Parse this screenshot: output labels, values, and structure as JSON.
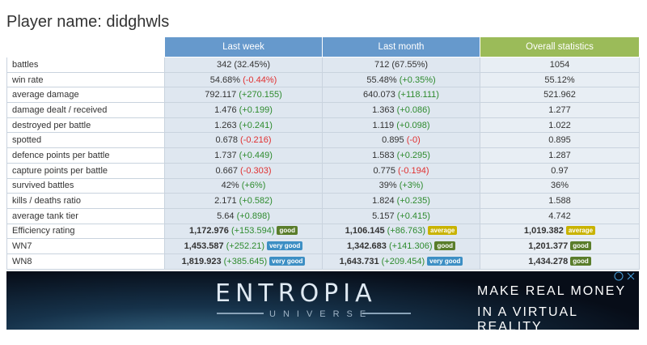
{
  "header": {
    "title": "Player name: didghwls"
  },
  "table": {
    "columns": [
      "Last week",
      "Last month",
      "Overall statistics"
    ],
    "column_colors": [
      "#6699cc",
      "#6699cc",
      "#9bbb59"
    ],
    "rows": [
      {
        "label": "battles",
        "cells": [
          {
            "value": "342 (32.45%)"
          },
          {
            "value": "712 (67.55%)"
          },
          {
            "value": "1054"
          }
        ]
      },
      {
        "label": "win rate",
        "cells": [
          {
            "value": "54.68%",
            "delta": "(-0.44%)"
          },
          {
            "value": "55.48%",
            "delta": "(+0.35%)"
          },
          {
            "value": "55.12%"
          }
        ]
      },
      {
        "label": "average damage",
        "cells": [
          {
            "value": "792.117",
            "delta": "(+270.155)"
          },
          {
            "value": "640.073",
            "delta": "(+118.111)"
          },
          {
            "value": "521.962"
          }
        ]
      },
      {
        "label": "damage dealt / received",
        "cells": [
          {
            "value": "1.476",
            "delta": "(+0.199)"
          },
          {
            "value": "1.363",
            "delta": "(+0.086)"
          },
          {
            "value": "1.277"
          }
        ]
      },
      {
        "label": "destroyed per battle",
        "cells": [
          {
            "value": "1.263",
            "delta": "(+0.241)"
          },
          {
            "value": "1.119",
            "delta": "(+0.098)"
          },
          {
            "value": "1.022"
          }
        ]
      },
      {
        "label": "spotted",
        "cells": [
          {
            "value": "0.678",
            "delta": "(-0.216)"
          },
          {
            "value": "0.895",
            "delta": "(-0)"
          },
          {
            "value": "0.895"
          }
        ]
      },
      {
        "label": "defence points per battle",
        "cells": [
          {
            "value": "1.737",
            "delta": "(+0.449)"
          },
          {
            "value": "1.583",
            "delta": "(+0.295)"
          },
          {
            "value": "1.287"
          }
        ]
      },
      {
        "label": "capture points per battle",
        "cells": [
          {
            "value": "0.667",
            "delta": "(-0.303)"
          },
          {
            "value": "0.775",
            "delta": "(-0.194)"
          },
          {
            "value": "0.97"
          }
        ]
      },
      {
        "label": "survived battles",
        "cells": [
          {
            "value": "42%",
            "delta": "(+6%)"
          },
          {
            "value": "39%",
            "delta": "(+3%)"
          },
          {
            "value": "36%"
          }
        ]
      },
      {
        "label": "kills / deaths ratio",
        "cells": [
          {
            "value": "2.171",
            "delta": "(+0.582)"
          },
          {
            "value": "1.824",
            "delta": "(+0.235)"
          },
          {
            "value": "1.588"
          }
        ]
      },
      {
        "label": "average tank tier",
        "cells": [
          {
            "value": "5.64",
            "delta": "(+0.898)"
          },
          {
            "value": "5.157",
            "delta": "(+0.415)"
          },
          {
            "value": "4.742"
          }
        ]
      },
      {
        "label": "Efficiency rating",
        "bold": true,
        "cells": [
          {
            "value": "1,172.976",
            "delta": "(+153.594)",
            "badge": {
              "text": "good",
              "color": "#5a7d2b"
            }
          },
          {
            "value": "1,106.145",
            "delta": "(+86.763)",
            "badge": {
              "text": "average",
              "color": "#c9b300"
            }
          },
          {
            "value": "1,019.382",
            "badge": {
              "text": "average",
              "color": "#c9b300"
            }
          }
        ]
      },
      {
        "label": "WN7",
        "bold": true,
        "cells": [
          {
            "value": "1,453.587",
            "delta": "(+252.21)",
            "badge": {
              "text": "very good",
              "color": "#3d8fc4"
            }
          },
          {
            "value": "1,342.683",
            "delta": "(+141.306)",
            "badge": {
              "text": "good",
              "color": "#5a7d2b"
            }
          },
          {
            "value": "1,201.377",
            "badge": {
              "text": "good",
              "color": "#5a7d2b"
            }
          }
        ]
      },
      {
        "label": "WN8",
        "bold": true,
        "cells": [
          {
            "value": "1,819.923",
            "delta": "(+385.645)",
            "badge": {
              "text": "very good",
              "color": "#3d8fc4"
            }
          },
          {
            "value": "1,643.731",
            "delta": "(+209.454)",
            "badge": {
              "text": "very good",
              "color": "#3d8fc4"
            }
          },
          {
            "value": "1,434.278",
            "badge": {
              "text": "good",
              "color": "#5a7d2b"
            }
          }
        ]
      }
    ]
  },
  "ad": {
    "logo": "ENTROPIA",
    "logo_sub": "UNIVERSE",
    "line1": "MAKE REAL MONEY",
    "line2": "IN A VIRTUAL REALITY"
  }
}
